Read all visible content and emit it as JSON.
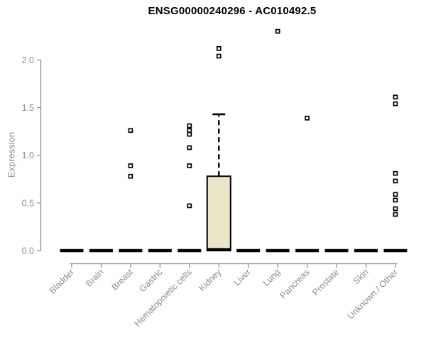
{
  "chart_data": {
    "type": "boxplot",
    "title": "ENSG00000240296 - AC010492.5",
    "ylabel": "Expression",
    "xlabel": "",
    "ylim": [
      0,
      2.35
    ],
    "yticks": [
      0.0,
      0.5,
      1.0,
      1.5,
      2.0
    ],
    "grid": false,
    "legend": "none",
    "colors": {
      "background": "#ffffff",
      "box_fill": "#ebe6c8",
      "box_stroke": "#000000",
      "median": "#000000",
      "outlier_stroke": "#000000",
      "axis": "#898989",
      "tick_label": "#8c8c8c",
      "title": "#000000"
    },
    "categories": [
      "Bladder",
      "Brain",
      "Breast",
      "Gastric",
      "Hematopoietic cells",
      "Kidney",
      "Liver",
      "Lung",
      "Pancreas",
      "Prostate",
      "Skin",
      "Unknown / Other"
    ],
    "boxes": [
      {
        "label": "Bladder",
        "q1": 0,
        "median": 0,
        "q3": 0,
        "whisker_low": 0,
        "whisker_high": 0,
        "outliers": []
      },
      {
        "label": "Brain",
        "q1": 0,
        "median": 0,
        "q3": 0,
        "whisker_low": 0,
        "whisker_high": 0,
        "outliers": []
      },
      {
        "label": "Breast",
        "q1": 0,
        "median": 0,
        "q3": 0,
        "whisker_low": 0,
        "whisker_high": 0,
        "outliers": [
          1.26,
          0.89,
          0.78
        ]
      },
      {
        "label": "Gastric",
        "q1": 0,
        "median": 0,
        "q3": 0,
        "whisker_low": 0,
        "whisker_high": 0,
        "outliers": []
      },
      {
        "label": "Hematopoietic cells",
        "q1": 0,
        "median": 0,
        "q3": 0,
        "whisker_low": 0,
        "whisker_high": 0,
        "outliers": [
          1.31,
          1.26,
          1.22,
          1.08,
          0.89,
          0.47
        ]
      },
      {
        "label": "Kidney",
        "q1": 0,
        "median": 0.01,
        "q3": 0.78,
        "whisker_low": 0,
        "whisker_high": 1.43,
        "outliers": [
          2.12,
          2.04
        ]
      },
      {
        "label": "Liver",
        "q1": 0,
        "median": 0,
        "q3": 0,
        "whisker_low": 0,
        "whisker_high": 0,
        "outliers": []
      },
      {
        "label": "Lung",
        "q1": 0,
        "median": 0,
        "q3": 0,
        "whisker_low": 0,
        "whisker_high": 0,
        "outliers": [
          2.3
        ]
      },
      {
        "label": "Pancreas",
        "q1": 0,
        "median": 0,
        "q3": 0,
        "whisker_low": 0,
        "whisker_high": 0,
        "outliers": [
          1.39
        ]
      },
      {
        "label": "Prostate",
        "q1": 0,
        "median": 0,
        "q3": 0,
        "whisker_low": 0,
        "whisker_high": 0,
        "outliers": []
      },
      {
        "label": "Skin",
        "q1": 0,
        "median": 0,
        "q3": 0,
        "whisker_low": 0,
        "whisker_high": 0,
        "outliers": []
      },
      {
        "label": "Unknown / Other",
        "q1": 0,
        "median": 0,
        "q3": 0,
        "whisker_low": 0,
        "whisker_high": 0,
        "outliers": [
          1.61,
          1.54,
          0.81,
          0.73,
          0.59,
          0.53,
          0.44,
          0.38
        ]
      }
    ]
  }
}
